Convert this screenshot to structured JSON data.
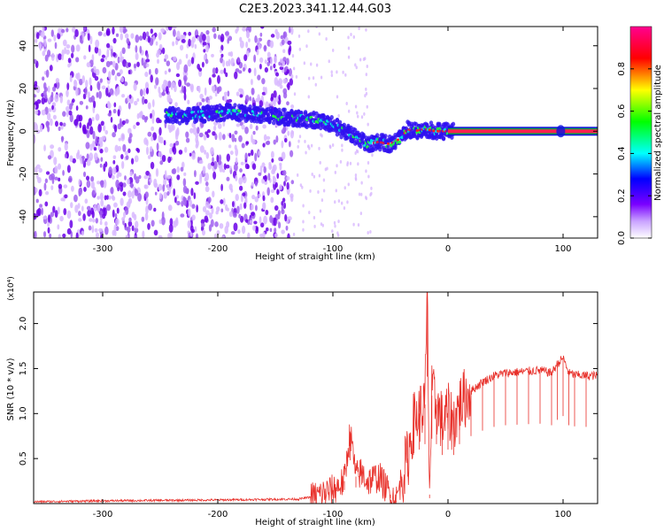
{
  "figure": {
    "title": "C2E3.2023.341.12.44.G03"
  },
  "chart_data": [
    {
      "type": "heatmap",
      "xlabel": "Height of straight line (km)",
      "ylabel": "Frequency (Hz)",
      "xlim": [
        -360,
        130
      ],
      "ylim": [
        -50,
        49
      ],
      "xticks": [
        -300,
        -200,
        -100,
        0,
        100
      ],
      "yticks": [
        -40,
        -20,
        0,
        20,
        40
      ],
      "colorbar": {
        "label": "Normalized spectral amplitude",
        "range": [
          0,
          1
        ],
        "ticks": [
          0.0,
          0.2,
          0.4,
          0.6,
          0.8
        ]
      },
      "ridge": {
        "x": [
          -245,
          -230,
          -210,
          -190,
          -170,
          -150,
          -130,
          -115,
          -100,
          -90,
          -80,
          -70,
          -60,
          -50,
          -40,
          -35,
          -30,
          -20,
          -10,
          0,
          5
        ],
        "y": [
          8,
          7,
          8,
          9,
          8,
          7,
          6,
          5,
          3,
          0,
          -3,
          -6,
          -5,
          -6,
          -3,
          1,
          0,
          1,
          0,
          0,
          0
        ],
        "note_series": "ridge of peak frequency"
      },
      "tone": {
        "y": 0,
        "x_from": 0,
        "x_to": 130
      },
      "noise_region": {
        "x_from": -360,
        "x_to": -135
      },
      "grid": false
    },
    {
      "type": "line",
      "xlabel": "Height of straight line (km)",
      "ylabel": "SNR (10 * v/v)",
      "multiplier_label": "(x10⁴)",
      "xlim": [
        -360,
        130
      ],
      "ylim": [
        0,
        2.35
      ],
      "xticks": [
        -300,
        -200,
        -100,
        0,
        100
      ],
      "yticks": [
        0.5,
        1.0,
        1.5,
        2.0
      ],
      "ytick_labels": [
        "0.5",
        "1.0",
        "1.5",
        "2.0"
      ],
      "color": "#e8302a",
      "series": [
        {
          "x": [
            -360,
            -300,
            -200,
            -130,
            -115,
            -100,
            -90,
            -85,
            -80,
            -75,
            -70,
            -60,
            -50,
            -45,
            -40,
            -35,
            -30,
            -25,
            -20,
            -18,
            -16,
            -14,
            -10,
            -5,
            0,
            5,
            10,
            20,
            30,
            40,
            50,
            60,
            70,
            80,
            90,
            95,
            100,
            105,
            110,
            120,
            130
          ],
          "y": [
            0.02,
            0.03,
            0.04,
            0.05,
            0.08,
            0.15,
            0.25,
            0.8,
            0.3,
            0.35,
            0.25,
            0.3,
            0.1,
            0.03,
            0.3,
            0.5,
            0.9,
            1.0,
            1.1,
            2.35,
            0.1,
            1.2,
            1.1,
            0.9,
            1.0,
            0.9,
            1.1,
            1.25,
            1.35,
            1.42,
            1.45,
            1.46,
            1.47,
            1.48,
            1.45,
            1.55,
            1.62,
            1.45,
            1.43,
            1.42,
            1.42
          ]
        }
      ],
      "grid": false
    }
  ],
  "colors": {
    "signal": "#e8302a",
    "tone_edge": "#10a040",
    "scale": [
      "#ffffff",
      "#7a00ff",
      "#0000ff",
      "#00ffff",
      "#00ff00",
      "#ffff00",
      "#ff0000",
      "#ff00aa"
    ]
  }
}
